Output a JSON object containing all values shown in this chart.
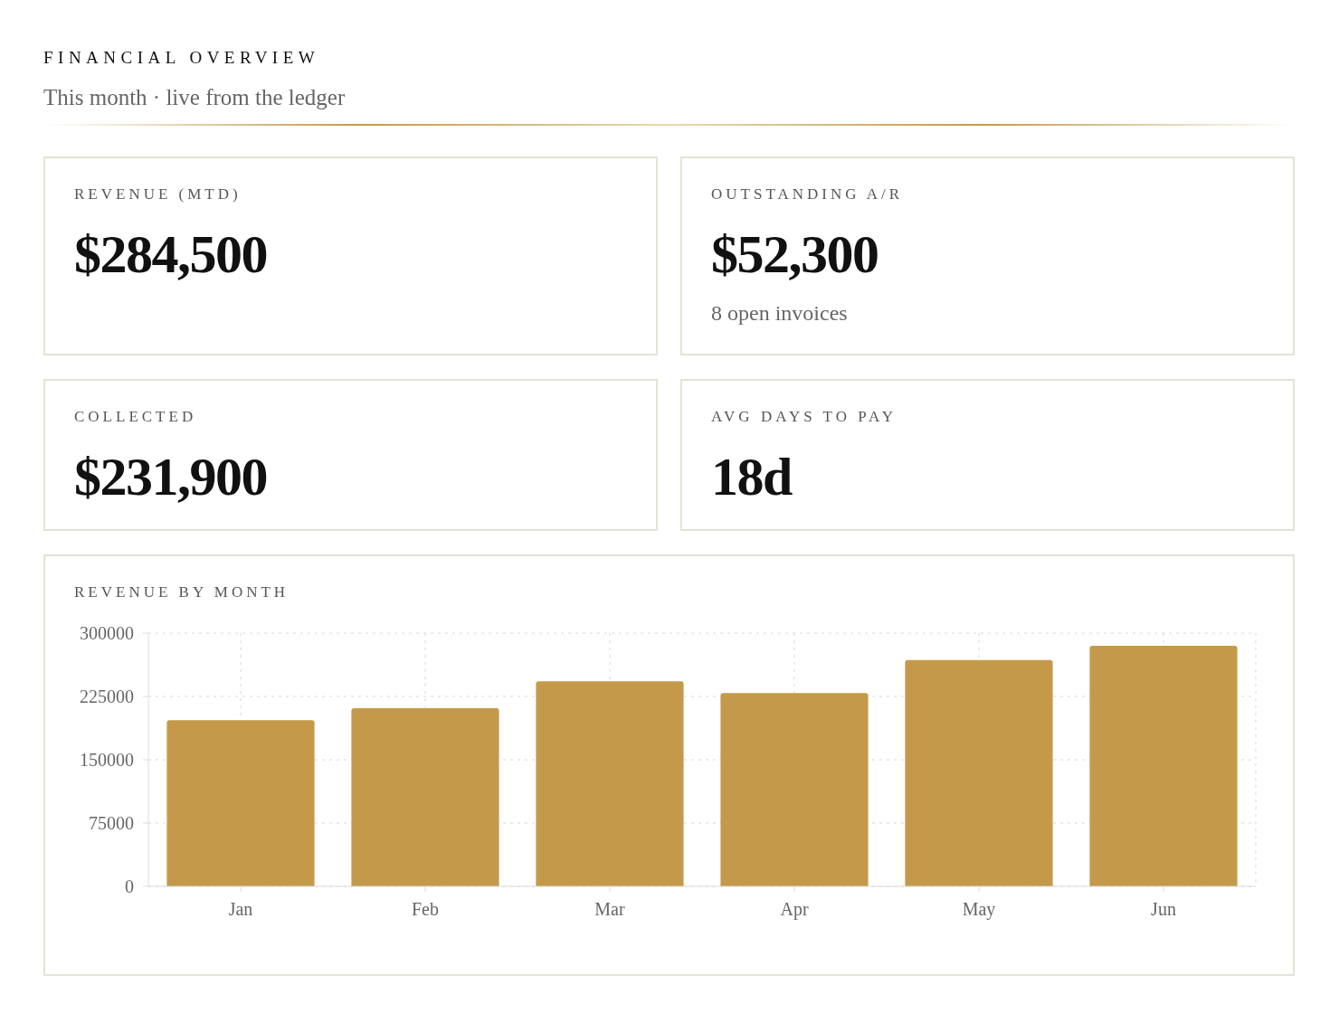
{
  "chart_data": [
    {
      "type": "other",
      "title": "FINANCIAL OVERVIEW",
      "subtitle": "This month · live from the ledger"
    },
    {
      "type": "other",
      "title": "REVENUE (MTD)",
      "annotations": [
        "$284,500"
      ]
    },
    {
      "type": "other",
      "title": "OUTSTANDING A/R",
      "annotations": [
        "$52,300",
        "8 open invoices"
      ]
    },
    {
      "type": "other",
      "title": "COLLECTED",
      "annotations": [
        "$231,900"
      ]
    },
    {
      "type": "other",
      "title": "AVG DAYS TO PAY",
      "annotations": [
        "18d"
      ]
    },
    {
      "type": "bar",
      "title": "REVENUE BY MONTH",
      "categories": [
        "Jan",
        "Feb",
        "Mar",
        "Apr",
        "May",
        "Jun"
      ],
      "values": [
        197000,
        211000,
        243000,
        229000,
        268000,
        285000
      ],
      "color": "#c49a4a",
      "ylim": [
        0,
        300000
      ],
      "yticks": [
        0,
        75000,
        150000,
        225000,
        300000
      ],
      "grid": true
    }
  ]
}
